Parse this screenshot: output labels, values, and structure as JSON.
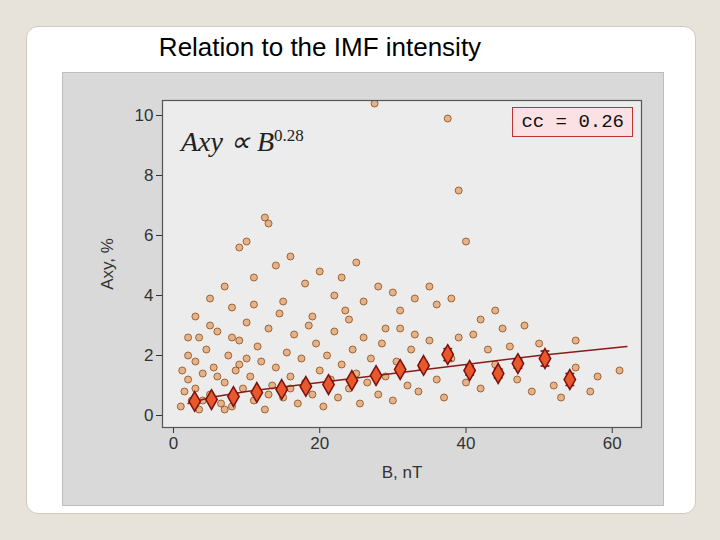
{
  "chart_data": {
    "type": "scatter",
    "title": "Relation to the IMF intensity",
    "xlabel": "B, nT",
    "ylabel": "Axy, %",
    "xlim": [
      -1.5,
      64
    ],
    "ylim": [
      -0.4,
      10.5
    ],
    "xticks": [
      0,
      20,
      40,
      60
    ],
    "yticks": [
      0,
      2,
      4,
      6,
      8,
      10
    ],
    "grid": false,
    "annotations": [
      {
        "text": "Axy ∝ B",
        "superscript": "0.28"
      },
      {
        "text": "cc = 0.26"
      }
    ],
    "series": [
      {
        "type": "scatter",
        "marker": "circle",
        "color": "#e3a06b",
        "points": [
          [
            27.5,
            10.4
          ],
          [
            37.5,
            9.9
          ],
          [
            39,
            7.5
          ],
          [
            40,
            5.8
          ],
          [
            33,
            3.9
          ],
          [
            35,
            4.3
          ],
          [
            23,
            4.6
          ],
          [
            25,
            5.1
          ],
          [
            12.5,
            6.6
          ],
          [
            13,
            6.4
          ],
          [
            10,
            5.8
          ],
          [
            9,
            5.6
          ],
          [
            16,
            5.3
          ],
          [
            20,
            4.8
          ],
          [
            30,
            4.1
          ],
          [
            36,
            3.7
          ],
          [
            42,
            3.2
          ],
          [
            45,
            2.9
          ],
          [
            50,
            2.4
          ],
          [
            55,
            2.5
          ],
          [
            58,
            1.3
          ],
          [
            61,
            1.5
          ],
          [
            53,
            0.6
          ],
          [
            57,
            0.8
          ],
          [
            48,
            3.0
          ],
          [
            44,
            3.5
          ],
          [
            38,
            3.9
          ],
          [
            28,
            4.3
          ],
          [
            31,
            3.5
          ],
          [
            26,
            3.8
          ],
          [
            22,
            4.0
          ],
          [
            18,
            4.4
          ],
          [
            14,
            5.0
          ],
          [
            11,
            4.6
          ],
          [
            7,
            4.3
          ],
          [
            5,
            3.9
          ],
          [
            3,
            3.3
          ],
          [
            2,
            2.6
          ],
          [
            8,
            3.6
          ],
          [
            15,
            3.8
          ],
          [
            19,
            3.3
          ],
          [
            24,
            3.2
          ],
          [
            29,
            2.9
          ],
          [
            33,
            2.7
          ],
          [
            39,
            2.6
          ],
          [
            43,
            2.2
          ],
          [
            47,
            1.2
          ],
          [
            52,
            1.0
          ],
          [
            55,
            1.6
          ],
          [
            49,
            0.8
          ],
          [
            1,
            0.3
          ],
          [
            1.5,
            0.8
          ],
          [
            2,
            1.2
          ],
          [
            2.5,
            0.5
          ],
          [
            3,
            1.8
          ],
          [
            3.5,
            0.2
          ],
          [
            4,
            1.4
          ],
          [
            4.5,
            2.2
          ],
          [
            5,
            0.7
          ],
          [
            5.5,
            1.6
          ],
          [
            6,
            2.8
          ],
          [
            6.5,
            0.4
          ],
          [
            7,
            1.1
          ],
          [
            7.5,
            2.0
          ],
          [
            8,
            0.3
          ],
          [
            8.5,
            1.5
          ],
          [
            9,
            2.5
          ],
          [
            9.5,
            0.9
          ],
          [
            10,
            3.1
          ],
          [
            10.5,
            1.3
          ],
          [
            11,
            0.5
          ],
          [
            11.5,
            2.3
          ],
          [
            12,
            1.8
          ],
          [
            12.5,
            0.2
          ],
          [
            13,
            2.9
          ],
          [
            13.5,
            1.0
          ],
          [
            14,
            1.6
          ],
          [
            14.5,
            3.4
          ],
          [
            15,
            0.6
          ],
          [
            15.5,
            2.1
          ],
          [
            16,
            1.3
          ],
          [
            16.5,
            2.7
          ],
          [
            17,
            0.4
          ],
          [
            17.5,
            1.9
          ],
          [
            18,
            1.1
          ],
          [
            18.5,
            3.0
          ],
          [
            19,
            0.7
          ],
          [
            19.5,
            2.4
          ],
          [
            20,
            1.5
          ],
          [
            20.5,
            0.3
          ],
          [
            21,
            2.0
          ],
          [
            21.5,
            1.2
          ],
          [
            22,
            2.8
          ],
          [
            22.5,
            0.6
          ],
          [
            23,
            1.7
          ],
          [
            23.5,
            3.5
          ],
          [
            24,
            0.9
          ],
          [
            24.5,
            2.2
          ],
          [
            25,
            1.4
          ],
          [
            25.5,
            0.4
          ],
          [
            26,
            2.6
          ],
          [
            26.5,
            1.1
          ],
          [
            27,
            1.9
          ],
          [
            28,
            0.7
          ],
          [
            28.5,
            2.4
          ],
          [
            29,
            1.3
          ],
          [
            30,
            0.5
          ],
          [
            30.5,
            1.8
          ],
          [
            31,
            2.9
          ],
          [
            32,
            1.0
          ],
          [
            32.5,
            2.2
          ],
          [
            33.5,
            0.8
          ],
          [
            34,
            1.6
          ],
          [
            35,
            2.5
          ],
          [
            36,
            1.2
          ],
          [
            37,
            0.6
          ],
          [
            38,
            1.9
          ],
          [
            40,
            1.1
          ],
          [
            41,
            2.7
          ],
          [
            42,
            0.9
          ],
          [
            44,
            1.7
          ],
          [
            46,
            2.3
          ],
          [
            3,
            0.9
          ],
          [
            4,
            0.5
          ],
          [
            6,
            1.3
          ],
          [
            2,
            2.0
          ],
          [
            5,
            3.0
          ],
          [
            7,
            0.2
          ],
          [
            9,
            1.7
          ],
          [
            11,
            3.7
          ],
          [
            3.5,
            2.6
          ],
          [
            1.2,
            1.5
          ],
          [
            16,
            0.9
          ],
          [
            13,
            0.7
          ],
          [
            10,
            1.9
          ],
          [
            8,
            2.6
          ]
        ]
      },
      {
        "type": "line",
        "line_style": "solid",
        "color": "#8b1a1a",
        "x": [
          2,
          5,
          10,
          20,
          30,
          40,
          50,
          62
        ],
        "y": [
          0.4,
          0.6,
          0.8,
          1.1,
          1.4,
          1.7,
          2.0,
          2.3
        ]
      },
      {
        "type": "errorbar",
        "marker": "diamond",
        "color": "#e8582a",
        "x": [
          2.9,
          5.2,
          8.2,
          11.4,
          14.8,
          18.1,
          21.2,
          24.4,
          27.7,
          31,
          34.2,
          37.5,
          40.5,
          44.4,
          47.1,
          50.8,
          54.2
        ],
        "y": [
          0.47,
          0.53,
          0.63,
          0.77,
          0.87,
          0.97,
          1.03,
          1.17,
          1.33,
          1.53,
          1.67,
          2.03,
          1.5,
          1.4,
          1.73,
          1.9,
          1.2
        ],
        "error": [
          0.05,
          0.05,
          0.05,
          0.05,
          0.05,
          0.05,
          0.05,
          0.06,
          0.07,
          0.1,
          0.12,
          0.2,
          0.15,
          0.15,
          0.15,
          0.25,
          0.2
        ]
      }
    ]
  }
}
